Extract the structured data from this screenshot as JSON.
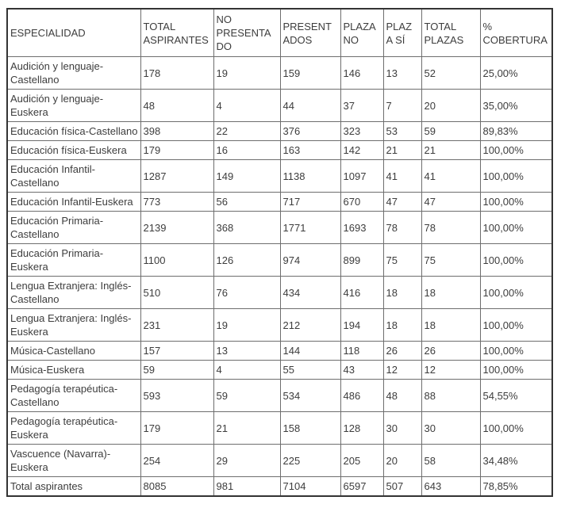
{
  "chart_data": {
    "type": "table",
    "title": "",
    "columns": [
      "ESPECIALIDAD",
      "TOTAL ASPIRANTES",
      "NO PRESENTADO",
      "PRESENTADOS",
      "PLAZA NO",
      "PLAZA SÍ",
      "TOTAL PLAZAS",
      "% COBERTURA"
    ],
    "rows": [
      [
        "Audición y lenguaje-Castellano",
        "178",
        "19",
        "159",
        "146",
        "13",
        "52",
        "25,00%"
      ],
      [
        "Audición y lenguaje-Euskera",
        "48",
        "4",
        "44",
        "37",
        "7",
        "20",
        "35,00%"
      ],
      [
        "Educación física-Castellano",
        "398",
        "22",
        "376",
        "323",
        "53",
        "59",
        "89,83%"
      ],
      [
        "Educación física-Euskera",
        "179",
        "16",
        "163",
        "142",
        "21",
        "21",
        "100,00%"
      ],
      [
        "Educación Infantil-Castellano",
        "1287",
        "149",
        "1138",
        "1097",
        "41",
        "41",
        "100,00%"
      ],
      [
        "Educación Infantil-Euskera",
        "773",
        "56",
        "717",
        "670",
        "47",
        "47",
        "100,00%"
      ],
      [
        "Educación Primaria-Castellano",
        "2139",
        "368",
        "1771",
        "1693",
        "78",
        "78",
        "100,00%"
      ],
      [
        "Educación Primaria-Euskera",
        "1100",
        "126",
        "974",
        "899",
        "75",
        "75",
        "100,00%"
      ],
      [
        "Lengua Extranjera: Inglés-Castellano",
        "510",
        "76",
        "434",
        "416",
        "18",
        "18",
        "100,00%"
      ],
      [
        "Lengua Extranjera: Inglés-Euskera",
        "231",
        "19",
        "212",
        "194",
        "18",
        "18",
        "100,00%"
      ],
      [
        "Música-Castellano",
        "157",
        "13",
        "144",
        "118",
        "26",
        "26",
        "100,00%"
      ],
      [
        "Música-Euskera",
        "59",
        "4",
        "55",
        "43",
        "12",
        "12",
        "100,00%"
      ],
      [
        "Pedagogía terapéutica-Castellano",
        "593",
        "59",
        "534",
        "486",
        "48",
        "88",
        "54,55%"
      ],
      [
        "Pedagogía terapéutica-Euskera",
        "179",
        "21",
        "158",
        "128",
        "30",
        "30",
        "100,00%"
      ],
      [
        "Vascuence (Navarra)-Euskera",
        "254",
        "29",
        "225",
        "205",
        "20",
        "58",
        "34,48%"
      ],
      [
        "Total aspirantes",
        "8085",
        "981",
        "7104",
        "6597",
        "507",
        "643",
        "78,85%"
      ]
    ],
    "totals_row_label": "Total aspirantes",
    "colors": {
      "outer_border": "#333333",
      "inner_border": "#6e6e6e",
      "text": "#3d3d3d",
      "background": "#ffffff"
    }
  }
}
